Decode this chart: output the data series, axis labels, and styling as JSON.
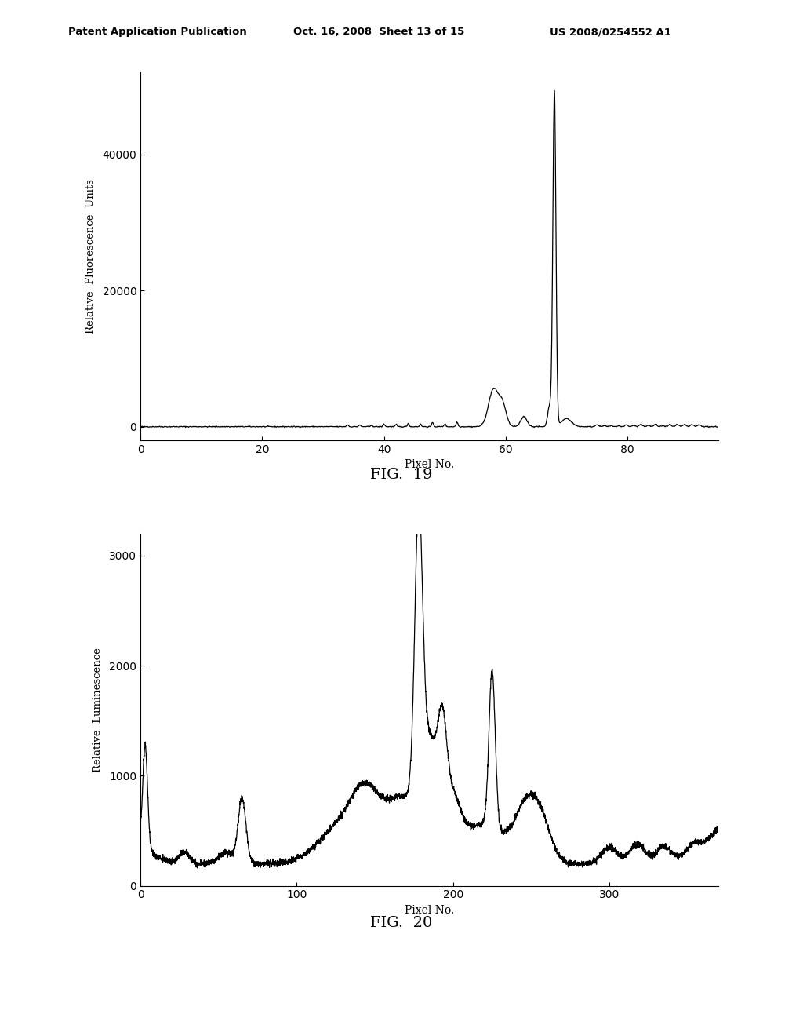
{
  "fig19": {
    "ylabel": "Relative  Fluorescence  Units",
    "xlabel": "Pixel No.",
    "title": "FIG.  19",
    "xlim": [
      0,
      95
    ],
    "ylim": [
      -2000,
      52000
    ],
    "yticks": [
      0,
      20000,
      40000
    ],
    "xticks": [
      0,
      20,
      40,
      60,
      80
    ]
  },
  "fig20": {
    "ylabel": "Relative  Luminescence",
    "xlabel": "Pixel No.",
    "title": "FIG.  20",
    "xlim": [
      0,
      370
    ],
    "ylim": [
      0,
      3200
    ],
    "yticks": [
      0,
      1000,
      2000,
      3000
    ],
    "xticks": [
      0,
      100,
      200,
      300
    ]
  },
  "header_left": "Patent Application Publication",
  "header_center": "Oct. 16, 2008  Sheet 13 of 15",
  "header_right": "US 2008/0254552 A1",
  "bg_color": "#ffffff",
  "line_color": "#000000",
  "line_width": 0.9
}
